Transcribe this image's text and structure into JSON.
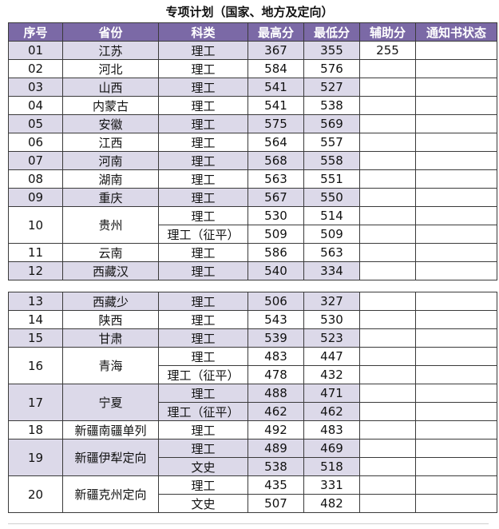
{
  "title": "专项计划（国家、地方及定向）",
  "headers": [
    "序号",
    "省份",
    "科类",
    "最高分",
    "最低分",
    "辅助分",
    "通知书状态"
  ],
  "table1": [
    {
      "no": "01",
      "prov": "江苏",
      "shade": true,
      "rows": [
        {
          "type": "理工",
          "max": "367",
          "min": "355",
          "aux": "255"
        }
      ]
    },
    {
      "no": "02",
      "prov": "河北",
      "shade": false,
      "rows": [
        {
          "type": "理工",
          "max": "584",
          "min": "576",
          "aux": ""
        }
      ]
    },
    {
      "no": "03",
      "prov": "山西",
      "shade": true,
      "rows": [
        {
          "type": "理工",
          "max": "541",
          "min": "527",
          "aux": ""
        }
      ]
    },
    {
      "no": "04",
      "prov": "内蒙古",
      "shade": false,
      "rows": [
        {
          "type": "理工",
          "max": "541",
          "min": "538",
          "aux": ""
        }
      ]
    },
    {
      "no": "05",
      "prov": "安徽",
      "shade": true,
      "rows": [
        {
          "type": "理工",
          "max": "575",
          "min": "569",
          "aux": ""
        }
      ]
    },
    {
      "no": "06",
      "prov": "江西",
      "shade": false,
      "rows": [
        {
          "type": "理工",
          "max": "564",
          "min": "557",
          "aux": ""
        }
      ]
    },
    {
      "no": "07",
      "prov": "河南",
      "shade": true,
      "rows": [
        {
          "type": "理工",
          "max": "568",
          "min": "558",
          "aux": ""
        }
      ]
    },
    {
      "no": "08",
      "prov": "湖南",
      "shade": false,
      "rows": [
        {
          "type": "理工",
          "max": "563",
          "min": "551",
          "aux": ""
        }
      ]
    },
    {
      "no": "09",
      "prov": "重庆",
      "shade": true,
      "rows": [
        {
          "type": "理工",
          "max": "567",
          "min": "550",
          "aux": ""
        }
      ]
    },
    {
      "no": "10",
      "prov": "贵州",
      "shade": false,
      "rows": [
        {
          "type": "理工",
          "max": "530",
          "min": "514",
          "aux": ""
        },
        {
          "type": "理工（征平）",
          "max": "509",
          "min": "509",
          "aux": ""
        }
      ]
    },
    {
      "no": "11",
      "prov": "云南",
      "shade": false,
      "rows": [
        {
          "type": "理工",
          "max": "586",
          "min": "563",
          "aux": ""
        }
      ]
    },
    {
      "no": "12",
      "prov": "西藏汉",
      "shade": true,
      "rows": [
        {
          "type": "理工",
          "max": "540",
          "min": "334",
          "aux": ""
        }
      ]
    }
  ],
  "table2": [
    {
      "no": "13",
      "prov": "西藏少",
      "shade": true,
      "rows": [
        {
          "type": "理工",
          "max": "506",
          "min": "327",
          "aux": ""
        }
      ]
    },
    {
      "no": "14",
      "prov": "陕西",
      "shade": false,
      "rows": [
        {
          "type": "理工",
          "max": "543",
          "min": "530",
          "aux": ""
        }
      ]
    },
    {
      "no": "15",
      "prov": "甘肃",
      "shade": true,
      "rows": [
        {
          "type": "理工",
          "max": "539",
          "min": "523",
          "aux": ""
        }
      ]
    },
    {
      "no": "16",
      "prov": "青海",
      "shade": false,
      "rows": [
        {
          "type": "理工",
          "max": "483",
          "min": "447",
          "aux": ""
        },
        {
          "type": "理工（征平）",
          "max": "478",
          "min": "432",
          "aux": ""
        }
      ]
    },
    {
      "no": "17",
      "prov": "宁夏",
      "shade": true,
      "rows": [
        {
          "type": "理工",
          "max": "488",
          "min": "471",
          "aux": ""
        },
        {
          "type": "理工（征平）",
          "max": "462",
          "min": "462",
          "aux": ""
        }
      ]
    },
    {
      "no": "18",
      "prov": "新疆南疆单列",
      "shade": false,
      "rows": [
        {
          "type": "理工",
          "max": "492",
          "min": "483",
          "aux": ""
        }
      ]
    },
    {
      "no": "19",
      "prov": "新疆伊犁定向",
      "shade": true,
      "rows": [
        {
          "type": "理工",
          "max": "489",
          "min": "469",
          "aux": ""
        },
        {
          "type": "文史",
          "max": "538",
          "min": "518",
          "aux": ""
        }
      ]
    },
    {
      "no": "20",
      "prov": "新疆克州定向",
      "shade": false,
      "rows": [
        {
          "type": "理工",
          "max": "435",
          "min": "331",
          "aux": ""
        },
        {
          "type": "文史",
          "max": "507",
          "min": "482",
          "aux": ""
        }
      ]
    }
  ]
}
